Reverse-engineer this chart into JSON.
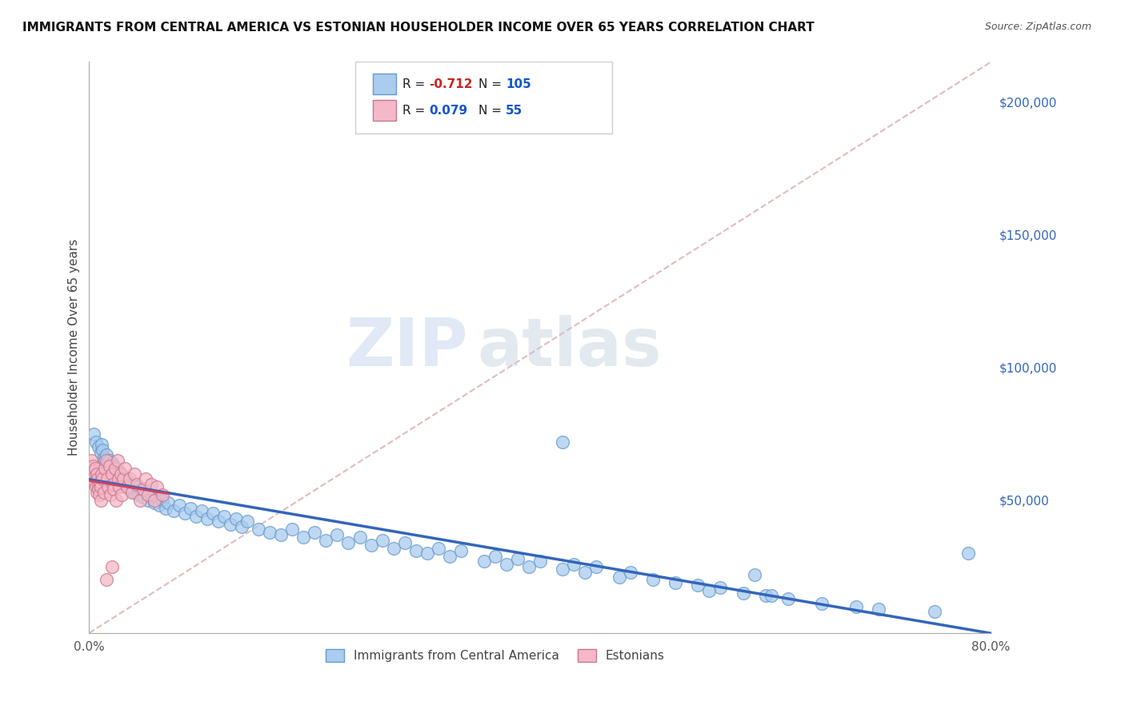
{
  "title": "IMMIGRANTS FROM CENTRAL AMERICA VS ESTONIAN HOUSEHOLDER INCOME OVER 65 YEARS CORRELATION CHART",
  "source": "Source: ZipAtlas.com",
  "ylabel": "Householder Income Over 65 years",
  "watermark": "ZIPatlas",
  "legend_entry1_r": "-0.712",
  "legend_entry1_n": "105",
  "legend_entry2_r": "0.079",
  "legend_entry2_n": "55",
  "series1_color": "#aaccee",
  "series1_edge": "#6699cc",
  "series2_color": "#f4b8c8",
  "series2_edge": "#cc7788",
  "line1_color": "#3366bb",
  "line2_color": "#cc4466",
  "dashed_color": "#ddaaaa",
  "background_color": "#ffffff",
  "grid_color": "#cccccc",
  "xmin": 0.0,
  "xmax": 80.0,
  "ymin": 0,
  "ymax": 215000,
  "yticks": [
    50000,
    100000,
    150000,
    200000
  ],
  "ytick_labels": [
    "$50,000",
    "$100,000",
    "$150,000",
    "$200,000"
  ],
  "blue_x": [
    0.4,
    0.6,
    0.8,
    1.0,
    1.1,
    1.2,
    1.3,
    1.4,
    1.5,
    1.6,
    1.7,
    1.8,
    1.9,
    2.0,
    2.1,
    2.2,
    2.3,
    2.4,
    2.5,
    2.6,
    2.7,
    2.8,
    2.9,
    3.0,
    3.1,
    3.2,
    3.3,
    3.5,
    3.6,
    3.8,
    4.0,
    4.2,
    4.4,
    4.6,
    4.8,
    5.0,
    5.2,
    5.5,
    5.8,
    6.0,
    6.2,
    6.5,
    6.8,
    7.0,
    7.5,
    8.0,
    8.5,
    9.0,
    9.5,
    10.0,
    10.5,
    11.0,
    11.5,
    12.0,
    12.5,
    13.0,
    13.5,
    14.0,
    15.0,
    16.0,
    17.0,
    18.0,
    19.0,
    20.0,
    21.0,
    22.0,
    23.0,
    24.0,
    25.0,
    26.0,
    27.0,
    28.0,
    29.0,
    30.0,
    31.0,
    32.0,
    33.0,
    35.0,
    36.0,
    37.0,
    38.0,
    39.0,
    40.0,
    42.0,
    43.0,
    44.0,
    45.0,
    47.0,
    48.0,
    50.0,
    52.0,
    54.0,
    56.0,
    58.0,
    60.0,
    62.0,
    65.0,
    68.0,
    70.0,
    75.0,
    78.0,
    42.0,
    55.0,
    59.0,
    60.5
  ],
  "blue_y": [
    75000,
    72000,
    70000,
    68000,
    71000,
    69000,
    66000,
    65000,
    67000,
    64000,
    63000,
    65000,
    62000,
    64000,
    61000,
    63000,
    60000,
    62000,
    59000,
    61000,
    58000,
    60000,
    57000,
    59000,
    56000,
    58000,
    55000,
    57000,
    54000,
    56000,
    53000,
    55000,
    52000,
    54000,
    51000,
    53000,
    50000,
    52000,
    49000,
    51000,
    48000,
    50000,
    47000,
    49000,
    46000,
    48000,
    45000,
    47000,
    44000,
    46000,
    43000,
    45000,
    42000,
    44000,
    41000,
    43000,
    40000,
    42000,
    39000,
    38000,
    37000,
    39000,
    36000,
    38000,
    35000,
    37000,
    34000,
    36000,
    33000,
    35000,
    32000,
    34000,
    31000,
    30000,
    32000,
    29000,
    31000,
    27000,
    29000,
    26000,
    28000,
    25000,
    27000,
    24000,
    26000,
    23000,
    25000,
    21000,
    23000,
    20000,
    19000,
    18000,
    17000,
    15000,
    14000,
    13000,
    11000,
    10000,
    9000,
    8000,
    30000,
    72000,
    16000,
    22000,
    14000
  ],
  "pink_x": [
    0.15,
    0.2,
    0.25,
    0.3,
    0.35,
    0.4,
    0.45,
    0.5,
    0.55,
    0.6,
    0.65,
    0.7,
    0.75,
    0.8,
    0.85,
    0.9,
    0.95,
    1.0,
    1.05,
    1.1,
    1.2,
    1.3,
    1.4,
    1.5,
    1.6,
    1.7,
    1.8,
    1.9,
    2.0,
    2.1,
    2.2,
    2.3,
    2.4,
    2.5,
    2.6,
    2.7,
    2.8,
    2.9,
    3.0,
    3.2,
    3.4,
    3.6,
    3.8,
    4.0,
    4.2,
    4.5,
    4.8,
    5.0,
    5.2,
    5.5,
    5.8,
    6.0,
    6.5,
    2.0,
    1.5
  ],
  "pink_y": [
    65000,
    62000,
    60000,
    58000,
    63000,
    61000,
    59000,
    57000,
    62000,
    55000,
    60000,
    53000,
    58000,
    56000,
    54000,
    52000,
    57000,
    50000,
    55000,
    60000,
    58000,
    53000,
    62000,
    65000,
    58000,
    55000,
    63000,
    52000,
    60000,
    56000,
    54000,
    62000,
    50000,
    65000,
    58000,
    55000,
    60000,
    52000,
    58000,
    62000,
    55000,
    58000,
    53000,
    60000,
    56000,
    50000,
    54000,
    58000,
    52000,
    56000,
    50000,
    55000,
    52000,
    25000,
    20000
  ]
}
